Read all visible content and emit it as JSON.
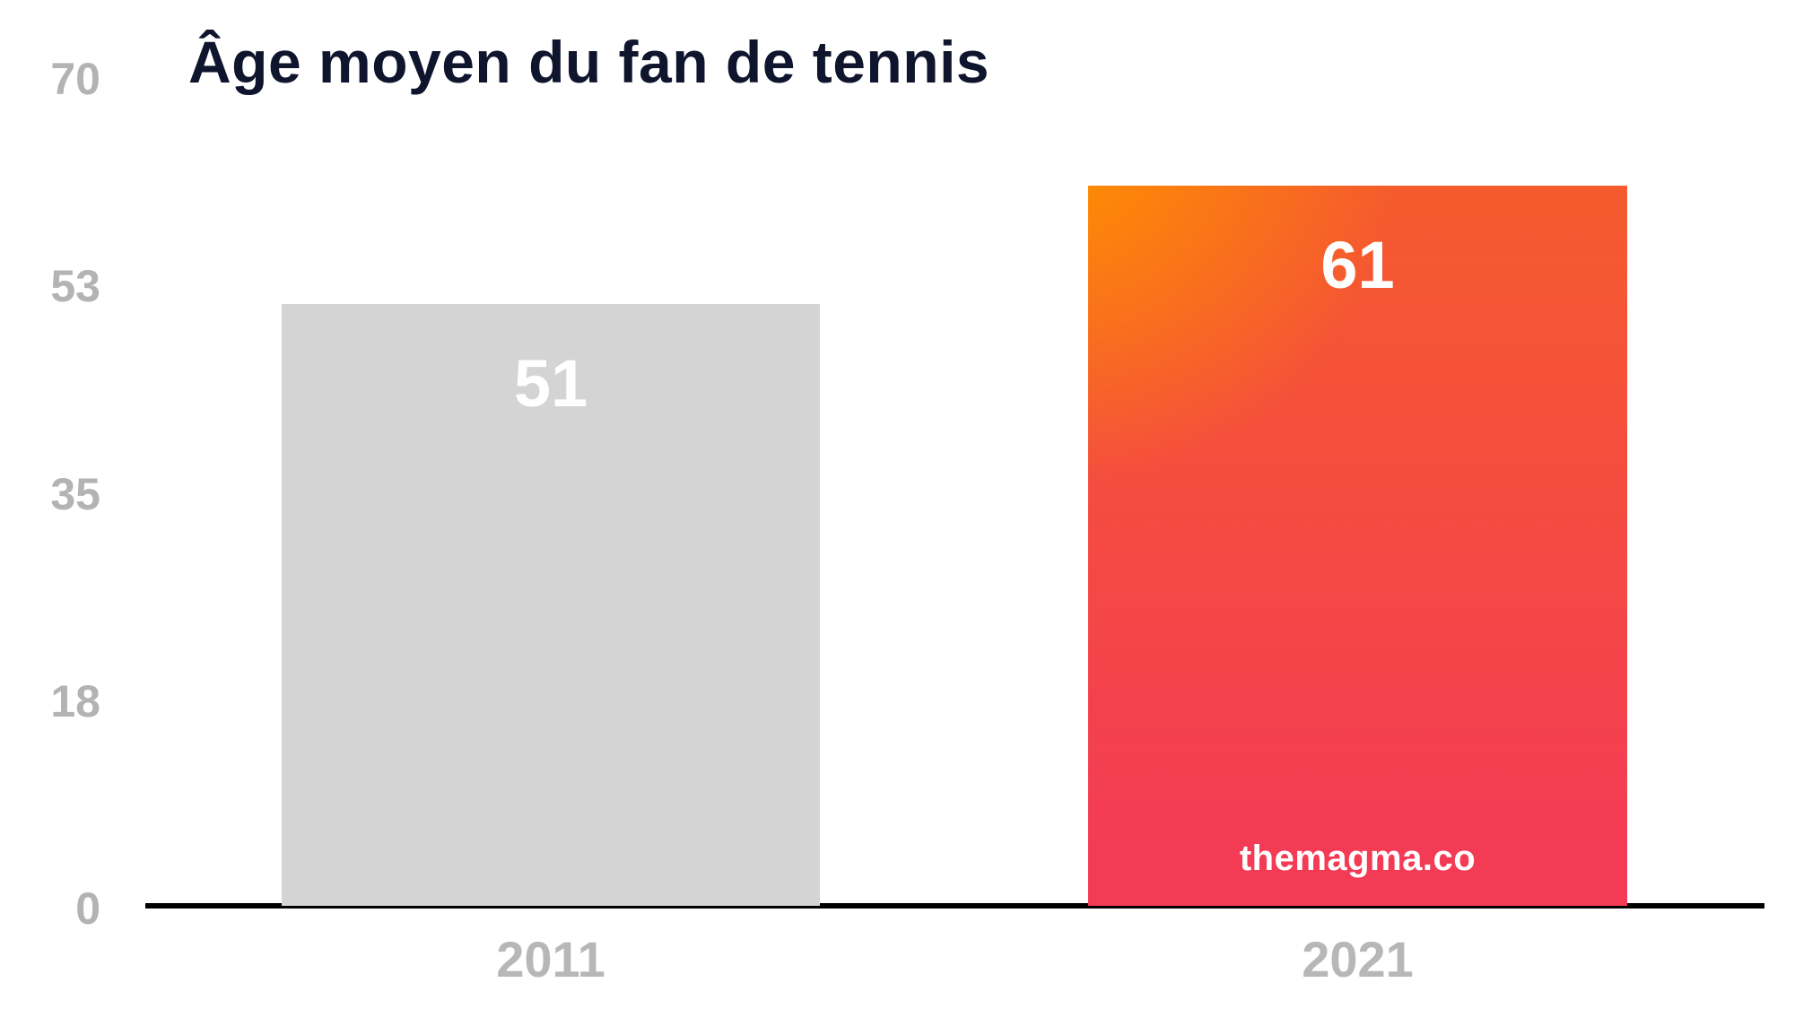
{
  "title": "Âge moyen du fan de tennis",
  "watermark": "themagma.co",
  "colors": {
    "title": "#10152e",
    "axis_line": "#000000",
    "tick_label": "#b3b3b3",
    "category_label": "#b7b7b7",
    "bar_2011_fill": "#d4d4d4",
    "bar_value_label": "#ffffff",
    "watermark_text": "#ffffff",
    "bar_2021_glow": "#ff9000",
    "bar_2021_top": "#f55b2d",
    "bar_2021_bottom": "#f43b55"
  },
  "y_axis": {
    "ticks": [
      {
        "label": "70",
        "value": 70
      },
      {
        "label": "53",
        "value": 52.5
      },
      {
        "label": "35",
        "value": 35
      },
      {
        "label": "18",
        "value": 17.5
      },
      {
        "label": "0",
        "value": 0
      }
    ]
  },
  "chart_data": {
    "type": "bar",
    "title": "Âge moyen du fan de tennis",
    "categories": [
      "2011",
      "2021"
    ],
    "values": [
      51,
      61
    ],
    "xlabel": "",
    "ylabel": "",
    "ylim": [
      0,
      70
    ],
    "ytick_labels": [
      "0",
      "18",
      "35",
      "53",
      "70"
    ],
    "grid": false,
    "legend": "none",
    "bar_styles": [
      {
        "category": "2011",
        "fill": "solid #d4d4d4",
        "value_label": "51"
      },
      {
        "category": "2021",
        "fill": "gradient orange #ff9000 → red-pink #f43b55",
        "value_label": "61",
        "watermark": "themagma.co"
      }
    ]
  }
}
